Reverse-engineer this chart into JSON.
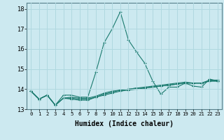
{
  "xlabel": "Humidex (Indice chaleur)",
  "xlim": [
    -0.5,
    23.5
  ],
  "ylim": [
    13.0,
    18.3
  ],
  "yticks": [
    13,
    14,
    15,
    16,
    17,
    18
  ],
  "xticks": [
    0,
    1,
    2,
    3,
    4,
    5,
    6,
    7,
    8,
    9,
    10,
    11,
    12,
    13,
    14,
    15,
    16,
    17,
    18,
    19,
    20,
    21,
    22,
    23
  ],
  "background_color": "#cce9f0",
  "grid_color": "#b0d8e0",
  "line_color": "#1a7a6e",
  "series": [
    [
      13.9,
      13.5,
      13.7,
      13.2,
      13.7,
      13.7,
      13.6,
      13.6,
      14.85,
      16.3,
      17.0,
      17.85,
      16.45,
      15.85,
      15.3,
      14.4,
      13.75,
      14.1,
      14.1,
      14.3,
      14.15,
      14.1,
      14.5,
      14.4
    ],
    [
      13.9,
      13.5,
      13.7,
      13.2,
      13.55,
      13.5,
      13.45,
      13.45,
      13.6,
      13.75,
      13.85,
      13.95,
      14.0,
      14.05,
      14.05,
      14.1,
      14.15,
      14.2,
      14.25,
      14.3,
      14.3,
      14.3,
      14.4,
      14.4
    ],
    [
      13.9,
      13.5,
      13.7,
      13.2,
      13.55,
      13.55,
      13.5,
      13.5,
      13.6,
      13.7,
      13.8,
      13.9,
      13.95,
      14.0,
      14.05,
      14.1,
      14.15,
      14.2,
      14.25,
      14.3,
      14.3,
      14.3,
      14.4,
      14.4
    ],
    [
      13.9,
      13.5,
      13.7,
      13.2,
      13.55,
      13.6,
      13.55,
      13.55,
      13.65,
      13.8,
      13.9,
      13.95,
      14.0,
      14.05,
      14.1,
      14.15,
      14.2,
      14.25,
      14.3,
      14.35,
      14.3,
      14.3,
      14.45,
      14.45
    ]
  ]
}
